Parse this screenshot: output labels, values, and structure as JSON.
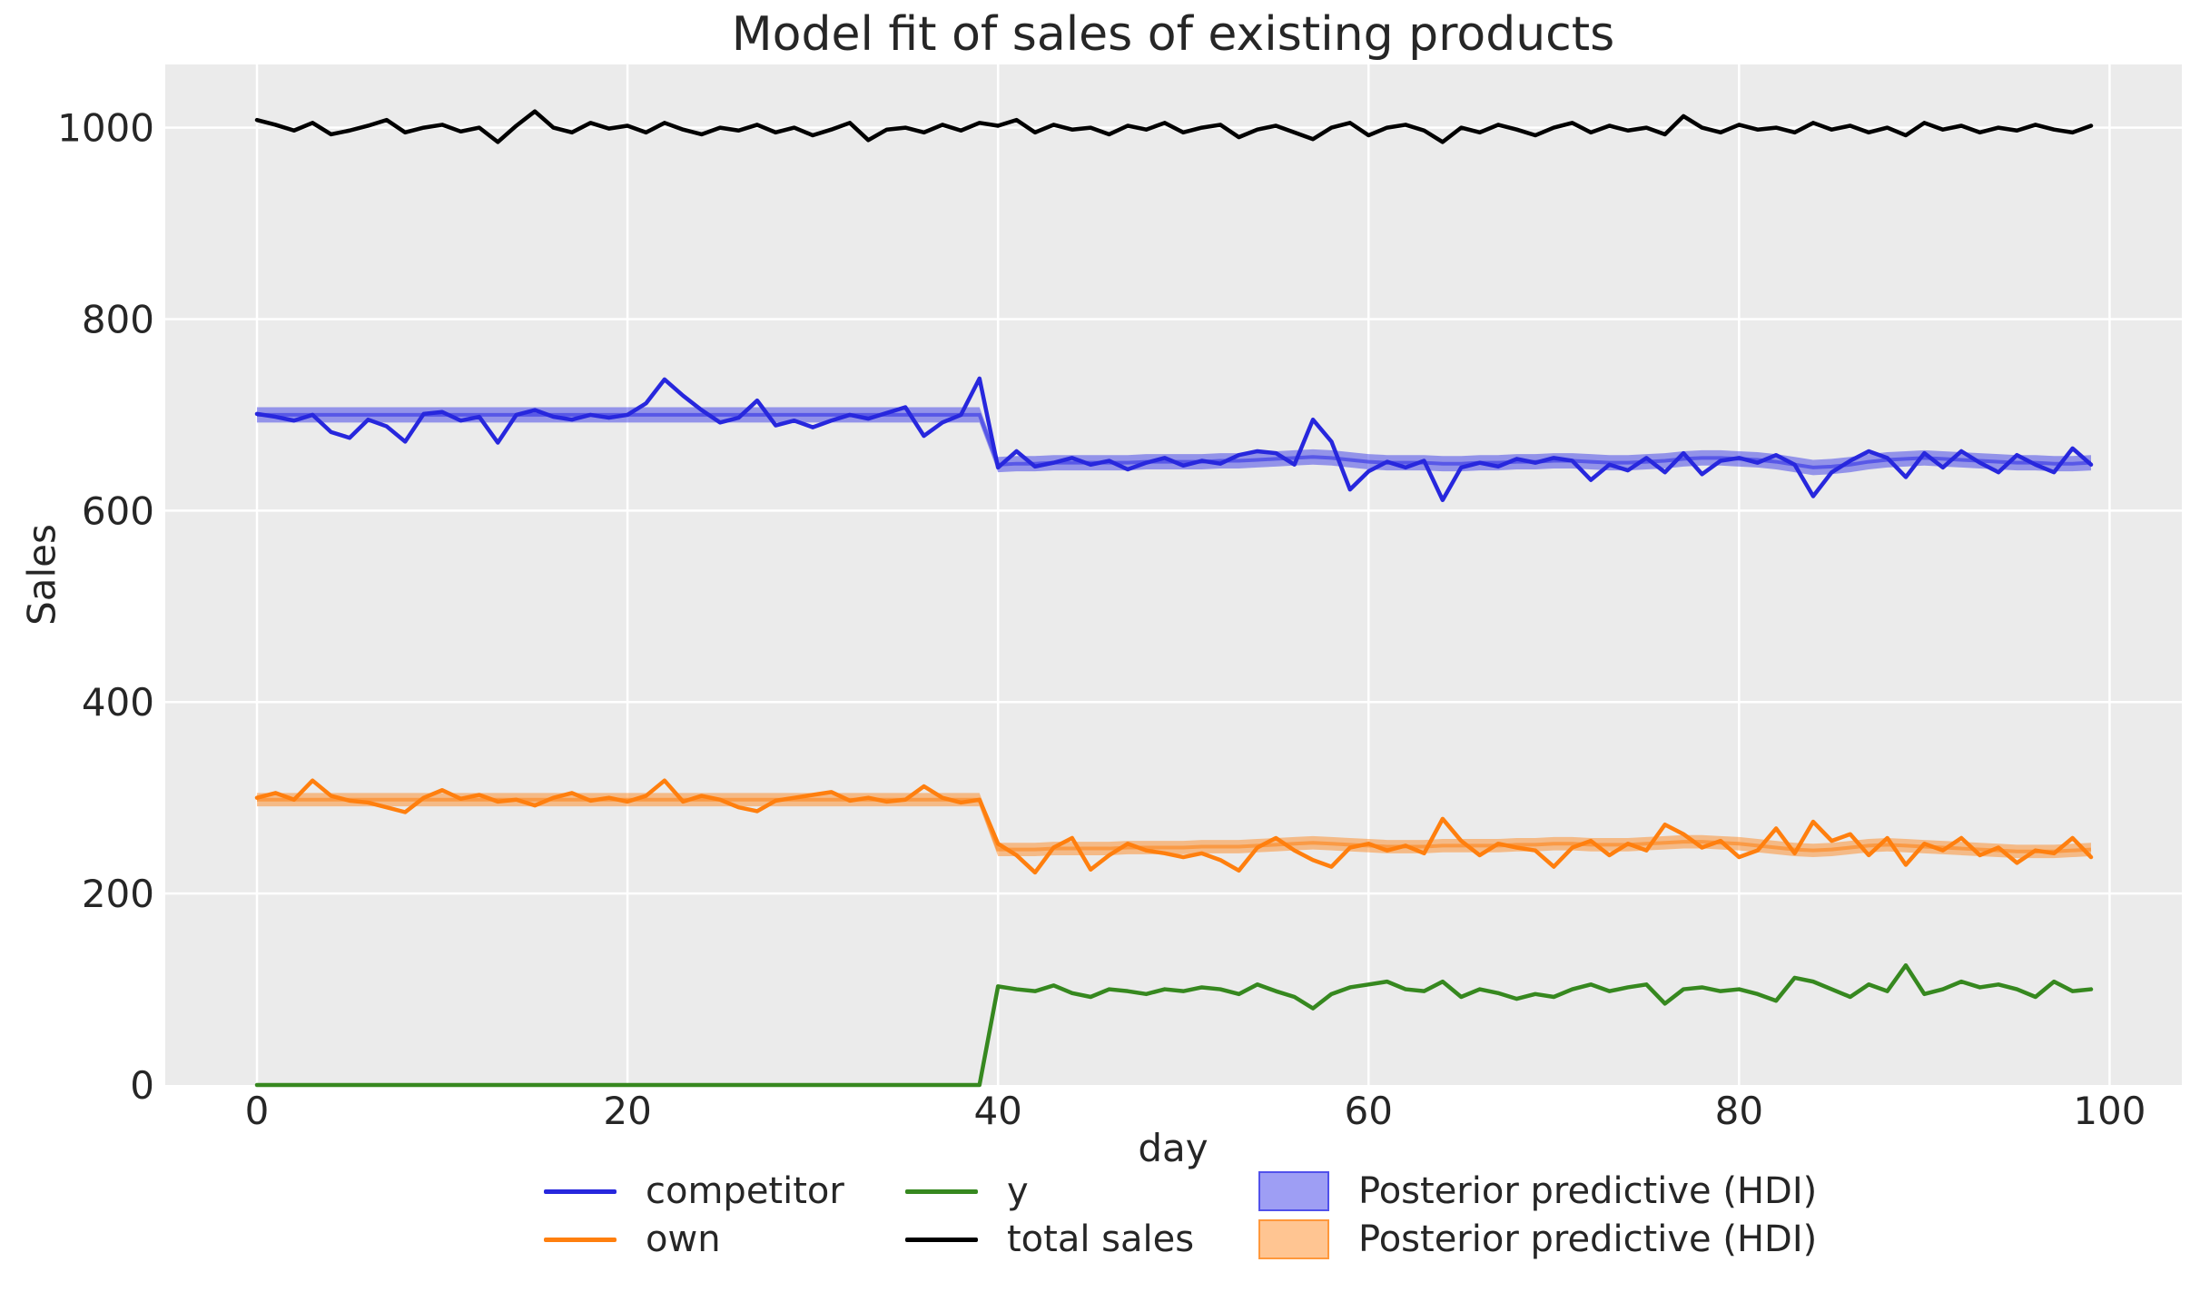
{
  "title": "Model fit of sales of existing products",
  "colors": {
    "plot_bg": "#ebebeb",
    "grid": "#ffffff",
    "text": "#262626",
    "competitor": "#2727dd",
    "own": "#ff7f0e",
    "y": "#36881f",
    "total": "#000000",
    "band_blue": "#2828e6",
    "band_orange": "#ff7f0e"
  },
  "legend": {
    "entries": [
      {
        "label": "competitor",
        "type": "line",
        "color": "#2727dd"
      },
      {
        "label": "own",
        "type": "line",
        "color": "#ff7f0e"
      },
      {
        "label": "y",
        "type": "line",
        "color": "#36881f"
      },
      {
        "label": "total sales",
        "type": "line",
        "color": "#000000"
      },
      {
        "label": "Posterior predictive (HDI)",
        "type": "patch",
        "color": "rgba(40,40,230,0.45)",
        "edge": "rgba(40,40,230,0.65)"
      },
      {
        "label": "Posterior predictive (HDI)",
        "type": "patch",
        "color": "rgba(255,127,14,0.45)",
        "edge": "rgba(255,127,14,0.65)"
      }
    ]
  },
  "chart_data": {
    "type": "line",
    "title": "Model fit of sales of existing products",
    "xlabel": "day",
    "ylabel": "Sales",
    "xlim": [
      -4.95,
      103.9
    ],
    "ylim": [
      0,
      1066
    ],
    "xticks": [
      0,
      20,
      40,
      60,
      80,
      100
    ],
    "yticks": [
      0,
      200,
      400,
      600,
      800,
      1000
    ],
    "grid": true,
    "legend_position": "below",
    "x": [
      0,
      1,
      2,
      3,
      4,
      5,
      6,
      7,
      8,
      9,
      10,
      11,
      12,
      13,
      14,
      15,
      16,
      17,
      18,
      19,
      20,
      21,
      22,
      23,
      24,
      25,
      26,
      27,
      28,
      29,
      30,
      31,
      32,
      33,
      34,
      35,
      36,
      37,
      38,
      39,
      40,
      41,
      42,
      43,
      44,
      45,
      46,
      47,
      48,
      49,
      50,
      51,
      52,
      53,
      54,
      55,
      56,
      57,
      58,
      59,
      60,
      61,
      62,
      63,
      64,
      65,
      66,
      67,
      68,
      69,
      70,
      71,
      72,
      73,
      74,
      75,
      76,
      77,
      78,
      79,
      80,
      81,
      82,
      83,
      84,
      85,
      86,
      87,
      88,
      89,
      90,
      91,
      92,
      93,
      94,
      95,
      96,
      97,
      98,
      99
    ],
    "series": [
      {
        "name": "competitor",
        "color": "#2727dd",
        "width": 4.5,
        "values": [
          701,
          698,
          694,
          700,
          682,
          676,
          695,
          688,
          672,
          701,
          703,
          694,
          698,
          671,
          700,
          705,
          698,
          695,
          700,
          697,
          700,
          712,
          737,
          720,
          705,
          692,
          697,
          715,
          689,
          694,
          687,
          694,
          700,
          696,
          702,
          708,
          678,
          692,
          700,
          738,
          645,
          662,
          646,
          650,
          655,
          648,
          652,
          643,
          650,
          655,
          647,
          652,
          649,
          658,
          662,
          660,
          648,
          695,
          672,
          622,
          641,
          651,
          645,
          652,
          611,
          645,
          650,
          646,
          654,
          650,
          655,
          652,
          632,
          648,
          642,
          655,
          640,
          660,
          638,
          652,
          655,
          650,
          658,
          648,
          615,
          640,
          652,
          662,
          655,
          635,
          660,
          645,
          662,
          650,
          640,
          658,
          648,
          640,
          665,
          648
        ]
      },
      {
        "name": "own",
        "color": "#ff7f0e",
        "width": 4.5,
        "values": [
          300,
          305,
          298,
          318,
          302,
          297,
          295,
          290,
          285,
          300,
          308,
          299,
          303,
          296,
          298,
          292,
          300,
          305,
          297,
          300,
          296,
          302,
          318,
          296,
          302,
          298,
          290,
          286,
          297,
          300,
          303,
          306,
          297,
          300,
          296,
          298,
          312,
          300,
          295,
          298,
          252,
          240,
          222,
          248,
          258,
          225,
          240,
          252,
          245,
          242,
          238,
          242,
          235,
          224,
          248,
          258,
          245,
          235,
          228,
          248,
          252,
          245,
          250,
          242,
          278,
          255,
          240,
          252,
          248,
          245,
          228,
          248,
          255,
          240,
          252,
          245,
          272,
          262,
          248,
          255,
          238,
          245,
          268,
          242,
          275,
          255,
          262,
          240,
          258,
          230,
          252,
          245,
          258,
          240,
          248,
          232,
          245,
          242,
          258,
          238
        ]
      },
      {
        "name": "y",
        "color": "#36881f",
        "width": 4.5,
        "values": [
          0,
          0,
          0,
          0,
          0,
          0,
          0,
          0,
          0,
          0,
          0,
          0,
          0,
          0,
          0,
          0,
          0,
          0,
          0,
          0,
          0,
          0,
          0,
          0,
          0,
          0,
          0,
          0,
          0,
          0,
          0,
          0,
          0,
          0,
          0,
          0,
          0,
          0,
          0,
          0,
          103,
          100,
          98,
          104,
          96,
          92,
          100,
          98,
          95,
          100,
          98,
          102,
          100,
          95,
          105,
          98,
          92,
          80,
          95,
          102,
          105,
          108,
          100,
          98,
          108,
          92,
          100,
          96,
          90,
          95,
          92,
          100,
          105,
          98,
          102,
          105,
          85,
          100,
          102,
          98,
          100,
          95,
          88,
          112,
          108,
          100,
          92,
          105,
          98,
          125,
          95,
          100,
          108,
          102,
          105,
          100,
          92,
          108,
          98,
          100
        ]
      },
      {
        "name": "total sales",
        "color": "#000000",
        "width": 4.5,
        "values": [
          1008,
          1003,
          997,
          1005,
          993,
          997,
          1002,
          1008,
          995,
          1000,
          1003,
          996,
          1000,
          985,
          1002,
          1017,
          1000,
          995,
          1005,
          999,
          1002,
          995,
          1005,
          998,
          993,
          1000,
          997,
          1003,
          995,
          1000,
          992,
          998,
          1005,
          987,
          998,
          1000,
          995,
          1003,
          997,
          1005,
          1002,
          1008,
          995,
          1003,
          998,
          1000,
          993,
          1002,
          998,
          1005,
          995,
          1000,
          1003,
          990,
          998,
          1002,
          995,
          988,
          1000,
          1005,
          992,
          1000,
          1003,
          997,
          985,
          1000,
          995,
          1003,
          998,
          992,
          1000,
          1005,
          995,
          1002,
          997,
          1000,
          993,
          1012,
          1000,
          995,
          1003,
          998,
          1000,
          995,
          1005,
          998,
          1002,
          995,
          1000,
          992,
          1005,
          998,
          1002,
          995,
          1000,
          997,
          1003,
          998,
          995,
          1002
        ]
      }
    ],
    "bands": [
      {
        "name": "Posterior predictive (HDI) competitor",
        "base_color": "#2828e6",
        "fill_alpha": 0.45,
        "mean_alpha": 0.55,
        "half_width": 8,
        "mean": [
          700,
          700,
          700,
          700,
          700,
          700,
          700,
          700,
          700,
          700,
          700,
          700,
          700,
          700,
          700,
          700,
          700,
          700,
          700,
          700,
          700,
          700,
          700,
          700,
          700,
          700,
          700,
          700,
          700,
          700,
          700,
          700,
          700,
          700,
          700,
          700,
          700,
          700,
          700,
          700,
          648,
          649,
          649,
          650,
          650,
          650,
          650,
          650,
          651,
          651,
          651,
          651,
          652,
          652,
          653,
          654,
          655,
          656,
          655,
          653,
          651,
          650,
          650,
          650,
          649,
          649,
          650,
          650,
          651,
          651,
          652,
          652,
          651,
          650,
          650,
          651,
          652,
          654,
          655,
          655,
          654,
          653,
          651,
          648,
          645,
          646,
          648,
          651,
          653,
          654,
          655,
          654,
          653,
          652,
          651,
          650,
          650,
          649,
          649,
          650
        ]
      },
      {
        "name": "Posterior predictive (HDI) own",
        "base_color": "#ff7f0e",
        "fill_alpha": 0.45,
        "mean_alpha": 0.55,
        "half_width": 7,
        "mean": [
          298,
          298,
          298,
          298,
          298,
          298,
          298,
          298,
          298,
          298,
          298,
          298,
          298,
          298,
          298,
          298,
          298,
          298,
          298,
          298,
          298,
          298,
          298,
          298,
          298,
          298,
          298,
          298,
          298,
          298,
          298,
          298,
          298,
          298,
          298,
          298,
          298,
          298,
          298,
          298,
          246,
          246,
          246,
          247,
          247,
          247,
          247,
          248,
          248,
          248,
          248,
          249,
          249,
          249,
          250,
          251,
          252,
          253,
          252,
          251,
          250,
          249,
          249,
          249,
          250,
          250,
          250,
          250,
          251,
          251,
          252,
          252,
          251,
          251,
          251,
          252,
          253,
          254,
          254,
          253,
          252,
          250,
          248,
          246,
          245,
          246,
          248,
          250,
          251,
          250,
          249,
          248,
          247,
          246,
          245,
          244,
          244,
          244,
          245,
          246
        ]
      }
    ]
  }
}
